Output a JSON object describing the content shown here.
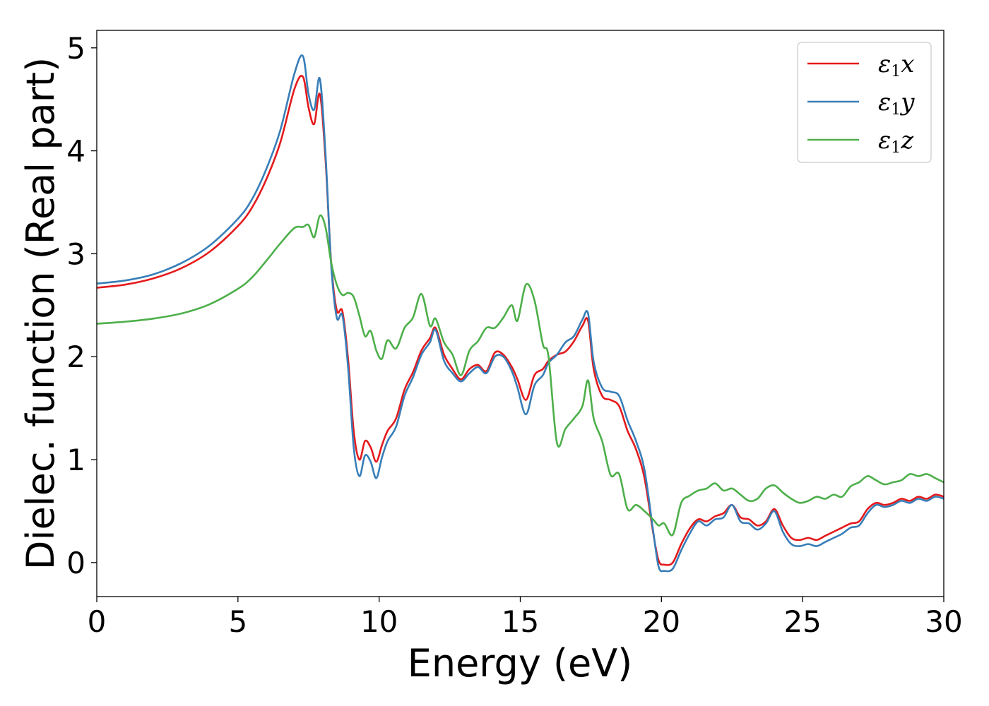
{
  "chart_data": {
    "type": "line",
    "title": "",
    "xlabel": "Energy (eV)",
    "ylabel": "Dielec. function (Real part)",
    "xlim": [
      0,
      30
    ],
    "ylim": [
      -0.33,
      5.17
    ],
    "xticks": [
      0,
      5,
      10,
      15,
      20,
      25,
      30
    ],
    "yticks": [
      0,
      1,
      2,
      3,
      4,
      5
    ],
    "grid": false,
    "legend_position": "top-right",
    "series": [
      {
        "name": "ε1x",
        "symbol": "ε",
        "sub": "1",
        "axis": "x",
        "color": "#e41a1c",
        "x": [
          0,
          1,
          2,
          3,
          4,
          5,
          5.5,
          6,
          6.5,
          7,
          7.3,
          7.5,
          7.7,
          7.9,
          8.1,
          8.3,
          8.5,
          8.7,
          8.9,
          9.1,
          9.3,
          9.5,
          9.7,
          9.9,
          10.1,
          10.3,
          10.6,
          10.9,
          11.2,
          11.5,
          11.8,
          12.0,
          12.3,
          12.6,
          12.9,
          13.2,
          13.5,
          13.8,
          14.1,
          14.4,
          14.7,
          14.9,
          15.2,
          15.5,
          15.8,
          16.0,
          16.3,
          16.6,
          16.9,
          17.2,
          17.4,
          17.6,
          17.9,
          18.2,
          18.5,
          18.8,
          19.1,
          19.4,
          19.7,
          19.9,
          20.1,
          20.4,
          20.7,
          21.0,
          21.3,
          21.6,
          21.9,
          22.2,
          22.5,
          22.8,
          23.1,
          23.4,
          23.7,
          24.0,
          24.3,
          24.6,
          24.9,
          25.2,
          25.5,
          25.8,
          26.1,
          26.4,
          26.7,
          27.0,
          27.3,
          27.6,
          27.9,
          28.2,
          28.5,
          28.8,
          29.1,
          29.4,
          29.7,
          30.0
        ],
        "y": [
          2.67,
          2.7,
          2.76,
          2.86,
          3.02,
          3.27,
          3.45,
          3.72,
          4.08,
          4.6,
          4.72,
          4.42,
          4.26,
          4.55,
          3.92,
          2.92,
          2.45,
          2.44,
          1.98,
          1.28,
          1.0,
          1.18,
          1.12,
          0.98,
          1.14,
          1.28,
          1.4,
          1.68,
          1.85,
          2.06,
          2.18,
          2.28,
          2.02,
          1.88,
          1.78,
          1.88,
          1.92,
          1.86,
          2.04,
          2.02,
          1.9,
          1.78,
          1.58,
          1.82,
          1.88,
          1.96,
          2.02,
          2.05,
          2.15,
          2.3,
          2.35,
          1.88,
          1.62,
          1.58,
          1.52,
          1.28,
          1.1,
          0.82,
          0.3,
          0.02,
          -0.02,
          0.0,
          0.18,
          0.33,
          0.42,
          0.4,
          0.45,
          0.48,
          0.56,
          0.44,
          0.42,
          0.36,
          0.4,
          0.52,
          0.36,
          0.24,
          0.22,
          0.24,
          0.22,
          0.26,
          0.3,
          0.34,
          0.38,
          0.4,
          0.52,
          0.58,
          0.56,
          0.58,
          0.62,
          0.6,
          0.64,
          0.62,
          0.66,
          0.64
        ]
      },
      {
        "name": "ε1y",
        "symbol": "ε",
        "sub": "1",
        "axis": "y",
        "color": "#377eb8",
        "x": [
          0,
          1,
          2,
          3,
          4,
          5,
          5.5,
          6,
          6.5,
          7,
          7.3,
          7.5,
          7.7,
          7.9,
          8.1,
          8.3,
          8.5,
          8.7,
          8.9,
          9.1,
          9.3,
          9.5,
          9.7,
          9.9,
          10.1,
          10.3,
          10.6,
          10.9,
          11.2,
          11.5,
          11.8,
          12.0,
          12.3,
          12.6,
          12.9,
          13.2,
          13.5,
          13.8,
          14.1,
          14.4,
          14.7,
          14.9,
          15.2,
          15.5,
          15.8,
          16.0,
          16.3,
          16.6,
          16.9,
          17.2,
          17.4,
          17.6,
          17.9,
          18.2,
          18.5,
          18.8,
          19.1,
          19.4,
          19.7,
          19.9,
          20.1,
          20.4,
          20.7,
          21.0,
          21.3,
          21.6,
          21.9,
          22.2,
          22.5,
          22.8,
          23.1,
          23.4,
          23.7,
          24.0,
          24.3,
          24.6,
          24.9,
          25.2,
          25.5,
          25.8,
          26.1,
          26.4,
          26.7,
          27.0,
          27.3,
          27.6,
          27.9,
          28.2,
          28.5,
          28.8,
          29.1,
          29.4,
          29.7,
          30.0
        ],
        "y": [
          2.71,
          2.74,
          2.8,
          2.91,
          3.08,
          3.34,
          3.53,
          3.82,
          4.2,
          4.75,
          4.92,
          4.55,
          4.4,
          4.7,
          3.98,
          2.9,
          2.38,
          2.4,
          1.9,
          1.12,
          0.84,
          1.04,
          0.98,
          0.82,
          1.02,
          1.18,
          1.32,
          1.62,
          1.8,
          2.02,
          2.14,
          2.26,
          1.96,
          1.84,
          1.76,
          1.84,
          1.9,
          1.84,
          2.0,
          2.0,
          1.86,
          1.7,
          1.44,
          1.72,
          1.82,
          1.94,
          2.02,
          2.14,
          2.2,
          2.36,
          2.42,
          1.95,
          1.7,
          1.66,
          1.62,
          1.38,
          1.18,
          0.9,
          0.32,
          -0.04,
          -0.08,
          -0.06,
          0.12,
          0.28,
          0.4,
          0.36,
          0.42,
          0.44,
          0.56,
          0.4,
          0.38,
          0.32,
          0.38,
          0.5,
          0.3,
          0.18,
          0.16,
          0.18,
          0.16,
          0.2,
          0.24,
          0.28,
          0.34,
          0.36,
          0.48,
          0.56,
          0.54,
          0.56,
          0.6,
          0.58,
          0.62,
          0.6,
          0.64,
          0.62
        ]
      },
      {
        "name": "ε1z",
        "symbol": "ε",
        "sub": "1",
        "axis": "z",
        "color": "#4daf4a",
        "x": [
          0,
          1,
          2,
          3,
          4,
          5,
          5.5,
          6,
          6.5,
          7,
          7.3,
          7.5,
          7.7,
          7.9,
          8.1,
          8.3,
          8.5,
          8.7,
          8.9,
          9.1,
          9.3,
          9.5,
          9.7,
          9.9,
          10.1,
          10.3,
          10.6,
          10.9,
          11.2,
          11.5,
          11.8,
          12.0,
          12.3,
          12.6,
          12.9,
          13.2,
          13.5,
          13.8,
          14.1,
          14.4,
          14.7,
          14.9,
          15.2,
          15.5,
          15.8,
          16.0,
          16.3,
          16.6,
          16.9,
          17.2,
          17.4,
          17.6,
          17.9,
          18.2,
          18.5,
          18.8,
          19.1,
          19.4,
          19.7,
          19.9,
          20.1,
          20.4,
          20.7,
          21.0,
          21.3,
          21.6,
          21.9,
          22.2,
          22.5,
          22.8,
          23.1,
          23.4,
          23.7,
          24.0,
          24.3,
          24.6,
          24.9,
          25.2,
          25.5,
          25.8,
          26.1,
          26.4,
          26.7,
          27.0,
          27.3,
          27.6,
          27.9,
          28.2,
          28.5,
          28.8,
          29.1,
          29.4,
          29.7,
          30.0
        ],
        "y": [
          2.32,
          2.34,
          2.37,
          2.42,
          2.51,
          2.66,
          2.77,
          2.93,
          3.1,
          3.25,
          3.26,
          3.28,
          3.16,
          3.37,
          3.26,
          2.92,
          2.7,
          2.6,
          2.62,
          2.58,
          2.4,
          2.2,
          2.25,
          2.06,
          1.98,
          2.16,
          2.08,
          2.28,
          2.38,
          2.61,
          2.3,
          2.37,
          2.14,
          2.02,
          1.82,
          2.06,
          2.15,
          2.28,
          2.28,
          2.38,
          2.5,
          2.35,
          2.7,
          2.55,
          2.12,
          2.0,
          1.16,
          1.3,
          1.4,
          1.52,
          1.77,
          1.4,
          1.18,
          0.85,
          0.86,
          0.52,
          0.56,
          0.5,
          0.42,
          0.36,
          0.38,
          0.27,
          0.58,
          0.65,
          0.7,
          0.72,
          0.77,
          0.7,
          0.72,
          0.66,
          0.6,
          0.62,
          0.72,
          0.75,
          0.68,
          0.62,
          0.58,
          0.6,
          0.64,
          0.62,
          0.66,
          0.64,
          0.74,
          0.78,
          0.84,
          0.8,
          0.76,
          0.78,
          0.8,
          0.86,
          0.84,
          0.86,
          0.82,
          0.78
        ]
      }
    ]
  }
}
